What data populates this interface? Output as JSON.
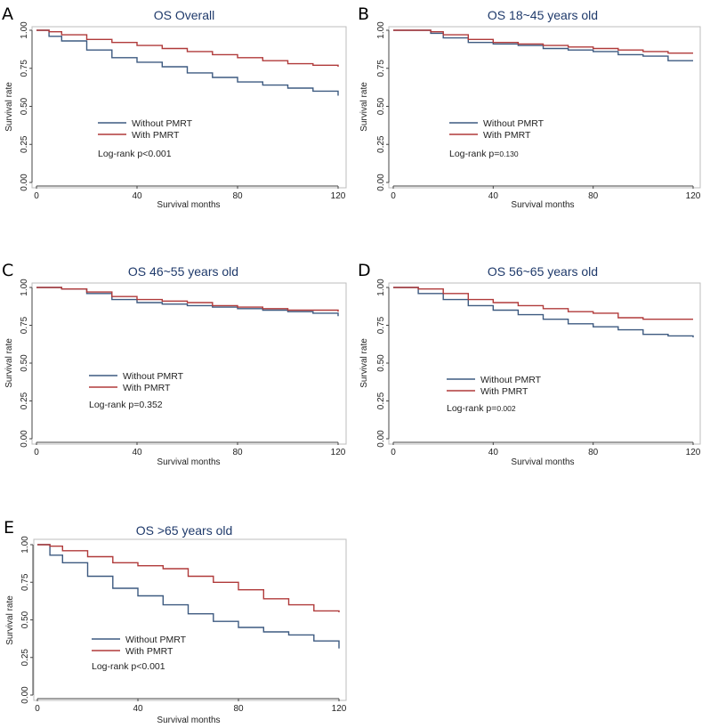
{
  "colors": {
    "without": "#3d5a80",
    "with": "#b03a3a"
  },
  "chart_data": [
    {
      "type": "line",
      "panel": "A",
      "title": "OS Overall",
      "xlabel": "Survival months",
      "ylabel": "Survival rate",
      "xlim": [
        0,
        120
      ],
      "ylim": [
        0,
        1
      ],
      "xticks": [
        "0",
        "40",
        "80",
        "120"
      ],
      "yticks": [
        "0.00",
        "0.25",
        "0.50",
        "0.75",
        "1.00"
      ],
      "legend": [
        "Without PMRT",
        "With PMRT"
      ],
      "annotation": {
        "label": "Log-rank p",
        "value": "<0.001",
        "small": false
      },
      "series": [
        {
          "name": "Without PMRT",
          "x": [
            0,
            5,
            10,
            20,
            30,
            40,
            50,
            60,
            70,
            80,
            90,
            100,
            110,
            120
          ],
          "y": [
            1.0,
            0.96,
            0.93,
            0.87,
            0.82,
            0.79,
            0.76,
            0.72,
            0.69,
            0.66,
            0.64,
            0.62,
            0.6,
            0.57
          ]
        },
        {
          "name": "With PMRT",
          "x": [
            0,
            5,
            10,
            20,
            30,
            40,
            50,
            60,
            70,
            80,
            90,
            100,
            110,
            120
          ],
          "y": [
            1.0,
            0.99,
            0.97,
            0.94,
            0.92,
            0.9,
            0.88,
            0.86,
            0.84,
            0.82,
            0.8,
            0.78,
            0.77,
            0.76
          ]
        }
      ]
    },
    {
      "type": "line",
      "panel": "B",
      "title": "OS 18~45 years old",
      "xlabel": "Survival months",
      "ylabel": "Survival rate",
      "xlim": [
        0,
        120
      ],
      "ylim": [
        0,
        1
      ],
      "xticks": [
        "0",
        "40",
        "80",
        "120"
      ],
      "yticks": [
        "0.00",
        "0.25",
        "0.50",
        "0.75",
        "1.00"
      ],
      "legend": [
        "Without PMRT",
        "With PMRT"
      ],
      "annotation": {
        "label": "Log-rank p=",
        "value": "0.130",
        "small": true
      },
      "series": [
        {
          "name": "Without PMRT",
          "x": [
            0,
            10,
            15,
            20,
            30,
            40,
            50,
            60,
            70,
            80,
            90,
            100,
            108,
            110,
            120
          ],
          "y": [
            1.0,
            1.0,
            0.98,
            0.95,
            0.92,
            0.91,
            0.9,
            0.88,
            0.87,
            0.86,
            0.84,
            0.83,
            0.83,
            0.8,
            0.8
          ]
        },
        {
          "name": "With PMRT",
          "x": [
            0,
            10,
            15,
            20,
            30,
            40,
            50,
            60,
            70,
            80,
            90,
            100,
            110,
            120
          ],
          "y": [
            1.0,
            1.0,
            0.99,
            0.97,
            0.94,
            0.92,
            0.91,
            0.9,
            0.89,
            0.88,
            0.87,
            0.86,
            0.85,
            0.85
          ]
        }
      ]
    },
    {
      "type": "line",
      "panel": "C",
      "title": "OS 46~55 years old",
      "xlabel": "Survival months",
      "ylabel": "Survival rate",
      "xlim": [
        0,
        120
      ],
      "ylim": [
        0,
        1
      ],
      "xticks": [
        "0",
        "40",
        "80",
        "120"
      ],
      "yticks": [
        "0.00",
        "0.25",
        "0.50",
        "0.75",
        "1.00"
      ],
      "legend": [
        "Without PMRT",
        "With PMRT"
      ],
      "annotation": {
        "label": "Log-rank p=",
        "value": "0.352",
        "small": false
      },
      "series": [
        {
          "name": "Without PMRT",
          "x": [
            0,
            10,
            20,
            30,
            40,
            50,
            60,
            70,
            80,
            90,
            100,
            110,
            120
          ],
          "y": [
            1.0,
            0.99,
            0.96,
            0.92,
            0.9,
            0.89,
            0.88,
            0.87,
            0.86,
            0.85,
            0.84,
            0.83,
            0.81
          ]
        },
        {
          "name": "With PMRT",
          "x": [
            0,
            10,
            20,
            30,
            40,
            50,
            60,
            70,
            80,
            90,
            100,
            110,
            120
          ],
          "y": [
            1.0,
            0.99,
            0.97,
            0.94,
            0.92,
            0.91,
            0.9,
            0.88,
            0.87,
            0.86,
            0.85,
            0.85,
            0.84
          ]
        }
      ]
    },
    {
      "type": "line",
      "panel": "D",
      "title": "OS 56~65 years old",
      "xlabel": "Survival months",
      "ylabel": "Survival rate",
      "xlim": [
        0,
        120
      ],
      "ylim": [
        0,
        1
      ],
      "xticks": [
        "0",
        "40",
        "80",
        "120"
      ],
      "yticks": [
        "0.00",
        "0.25",
        "0.50",
        "0.75",
        "1.00"
      ],
      "legend": [
        "Without PMRT",
        "With PMRT"
      ],
      "annotation": {
        "label": "Log-rank p=",
        "value": "0.002",
        "small": true
      },
      "series": [
        {
          "name": "Without PMRT",
          "x": [
            0,
            10,
            20,
            30,
            40,
            50,
            60,
            70,
            80,
            90,
            100,
            110,
            120
          ],
          "y": [
            1.0,
            0.96,
            0.92,
            0.88,
            0.85,
            0.82,
            0.79,
            0.76,
            0.74,
            0.72,
            0.69,
            0.68,
            0.67
          ]
        },
        {
          "name": "With PMRT",
          "x": [
            0,
            10,
            20,
            30,
            40,
            50,
            60,
            70,
            80,
            90,
            100,
            110,
            120
          ],
          "y": [
            1.0,
            0.99,
            0.96,
            0.92,
            0.9,
            0.88,
            0.86,
            0.84,
            0.83,
            0.8,
            0.79,
            0.79,
            0.79
          ]
        }
      ]
    },
    {
      "type": "line",
      "panel": "E",
      "title": "OS >65 years old",
      "xlabel": "Survival months",
      "ylabel": "Survival rate",
      "xlim": [
        0,
        120
      ],
      "ylim": [
        0,
        1
      ],
      "xticks": [
        "0",
        "40",
        "80",
        "120"
      ],
      "yticks": [
        "0.00",
        "0.25",
        "0.50",
        "0.75",
        "1.00"
      ],
      "legend": [
        "Without PMRT",
        "With PMRT"
      ],
      "annotation": {
        "label": "Log-rank p",
        "value": "<0.001",
        "small": false
      },
      "series": [
        {
          "name": "Without PMRT",
          "x": [
            0,
            5,
            10,
            20,
            30,
            40,
            50,
            60,
            70,
            80,
            90,
            100,
            110,
            120
          ],
          "y": [
            1.0,
            0.93,
            0.88,
            0.79,
            0.71,
            0.66,
            0.6,
            0.54,
            0.49,
            0.45,
            0.42,
            0.4,
            0.36,
            0.31
          ]
        },
        {
          "name": "With PMRT",
          "x": [
            0,
            5,
            10,
            20,
            30,
            40,
            50,
            60,
            70,
            80,
            90,
            100,
            110,
            120
          ],
          "y": [
            1.0,
            0.99,
            0.96,
            0.92,
            0.88,
            0.86,
            0.84,
            0.79,
            0.75,
            0.7,
            0.64,
            0.6,
            0.56,
            0.55
          ]
        }
      ]
    }
  ]
}
